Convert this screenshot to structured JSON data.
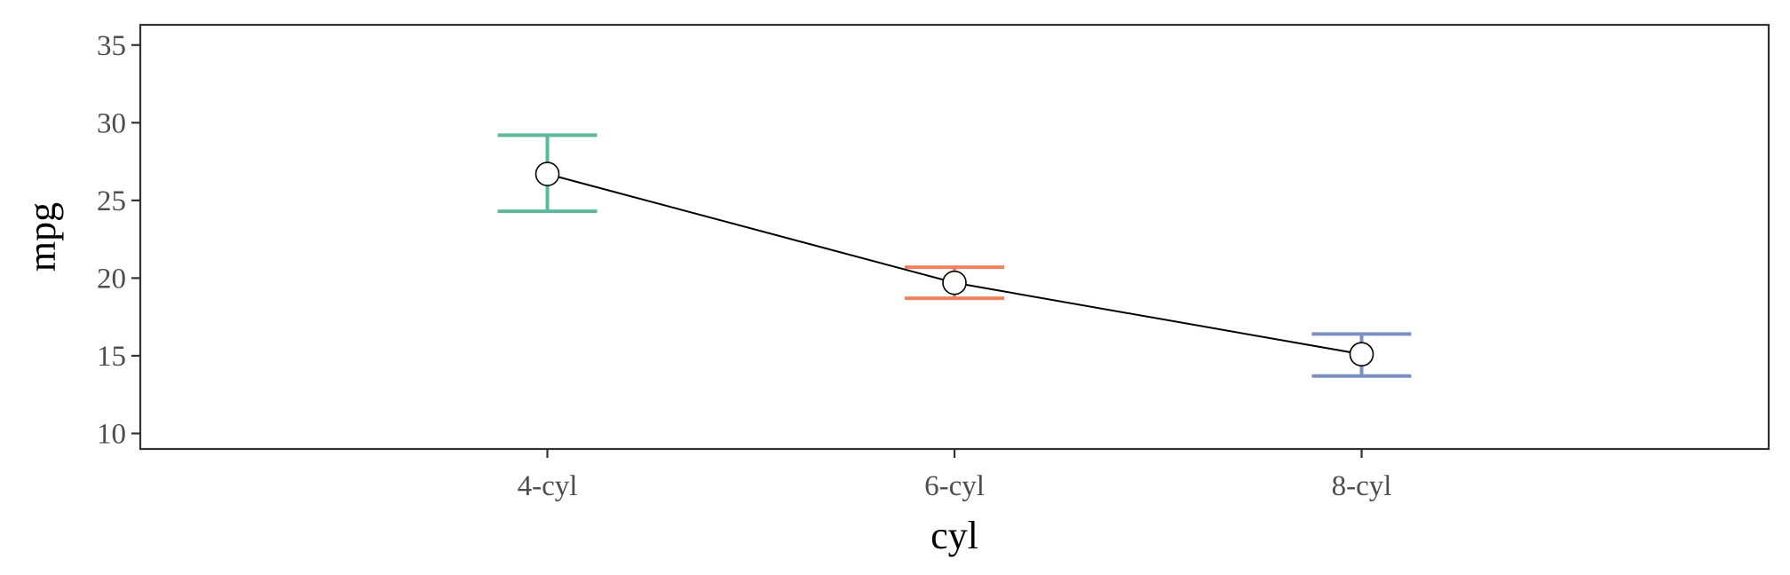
{
  "chart_data": {
    "type": "line",
    "title": "",
    "xlabel": "cyl",
    "ylabel": "mpg",
    "categories": [
      "4-cyl",
      "6-cyl",
      "8-cyl"
    ],
    "series": [
      {
        "values": [
          26.7,
          19.7,
          15.1
        ],
        "error_low": [
          24.3,
          18.7,
          13.7
        ],
        "error_high": [
          29.2,
          20.7,
          16.4
        ],
        "error_colors": [
          "#5ab99a",
          "#f0825d",
          "#7b8fc4"
        ]
      }
    ],
    "yticks": [
      10,
      15,
      20,
      25,
      30,
      35
    ],
    "ylim": [
      9,
      36.3
    ],
    "grid": false,
    "legend": "none"
  }
}
